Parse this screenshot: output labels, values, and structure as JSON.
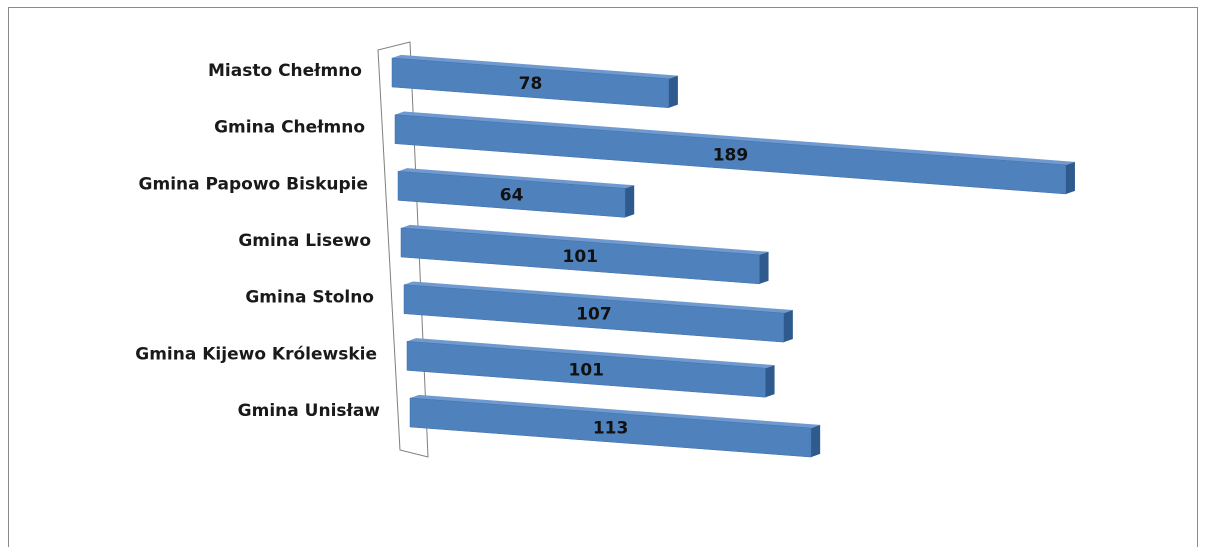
{
  "chart_data": {
    "type": "bar",
    "orientation": "horizontal",
    "three_d": true,
    "categories": [
      "Miasto Chełmno",
      "Gmina Chełmno",
      "Gmina Papowo Biskupie",
      "Gmina Lisewo",
      "Gmina Stolno",
      "Gmina Kijewo Królewskie",
      "Gmina Unisław"
    ],
    "values": [
      78,
      189,
      64,
      101,
      107,
      101,
      113
    ],
    "data_labels": [
      "78",
      "189",
      "64",
      "101",
      "107",
      "101",
      "113"
    ],
    "bar_color": "#4f81bd",
    "bar_top_color": "#6f9ad0",
    "bar_side_color": "#2f5a8e",
    "grid": false,
    "legend": "none"
  }
}
